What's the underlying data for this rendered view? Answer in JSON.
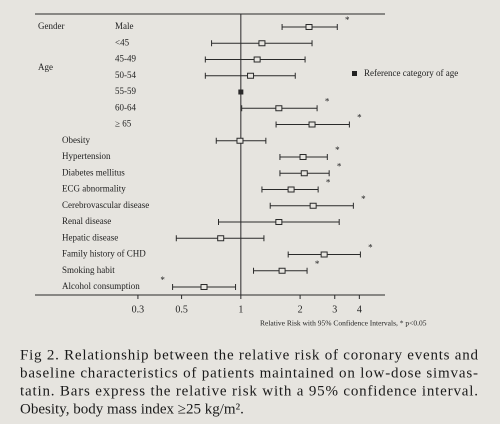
{
  "chart_data": {
    "type": "forest",
    "x_label": "Relative Risk with 95% Confidence Intervals, * p<0.05",
    "xscale": "log",
    "xlim": [
      0.09,
      5.4
    ],
    "xticks": [
      0.3,
      0.5,
      1,
      2,
      3,
      4
    ],
    "reference_line": 1,
    "groups": [
      "Gender",
      "Age"
    ],
    "categories": [
      "Male",
      "<45",
      "45-49",
      "50-54",
      "55-59",
      "60-64",
      "≥ 65",
      "Obesity",
      "Hypertension",
      "Diabetes mellitus",
      "ECG abnormality",
      "Cerebrovascular disease",
      "Renal disease",
      "Hepatic disease",
      "Family history of CHD",
      "Smoking habit",
      "Alcohol consumption"
    ],
    "series": [
      {
        "color": "#2a2a2a",
        "values": [
          2.22,
          1.28,
          1.21,
          1.12,
          1,
          1.56,
          2.3,
          0.99,
          2.07,
          2.1,
          1.8,
          2.33,
          1.56,
          0.79,
          2.65,
          1.62,
          0.65
        ],
        "lower": [
          1.62,
          0.71,
          0.66,
          0.66,
          null,
          1.01,
          1.51,
          0.75,
          1.58,
          1.58,
          1.28,
          1.41,
          0.77,
          0.47,
          1.74,
          1.16,
          0.45
        ],
        "upper": [
          3.09,
          2.3,
          2.12,
          1.89,
          null,
          2.44,
          3.56,
          1.34,
          2.75,
          2.81,
          2.47,
          3.73,
          3.16,
          1.31,
          4.05,
          2.17,
          0.94
        ],
        "significance": [
          "*",
          null,
          null,
          null,
          null,
          "*",
          "*",
          null,
          "*",
          "*",
          "*",
          "*",
          null,
          null,
          "*",
          "*",
          "*"
        ]
      }
    ],
    "legend": "Reference category of age",
    "caption": {
      "lines": [
        "Fig 2.   Relationship between the relative risk of coronary events and",
        "baseline characteristics of patients maintained on low-dose simvas-",
        "tatin. Bars express the relative risk with a 95% confidence interval.",
        "Obesity, body mass index ≥25 kg/m²."
      ]
    }
  }
}
